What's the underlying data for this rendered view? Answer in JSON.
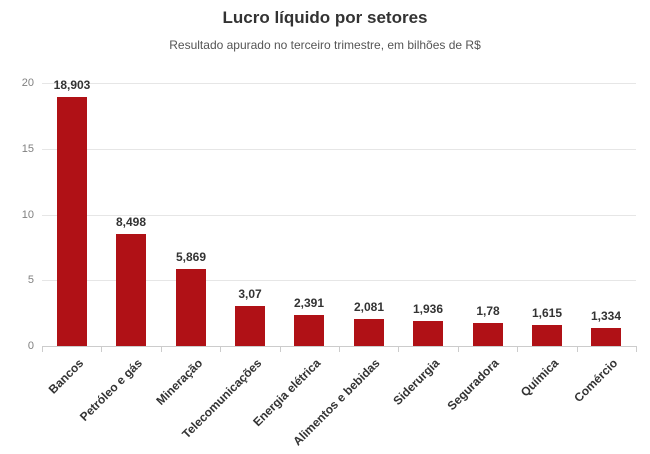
{
  "header": {
    "title": "Lucro líquido por setores",
    "subtitle": "Resultado apurado no terceiro trimestre, em bilhões de R$"
  },
  "chart_data": {
    "type": "bar",
    "title": "Lucro líquido por setores",
    "subtitle": "Resultado apurado no terceiro trimestre, em bilhões de R$",
    "categories": [
      "Bancos",
      "Petróleo e gás",
      "Mineração",
      "Telecomunicações",
      "Energia elétrica",
      "Alimentos e bebidas",
      "Siderurgia",
      "Seguradora",
      "Química",
      "Comércio"
    ],
    "values": [
      18.903,
      8.498,
      5.869,
      3.07,
      2.391,
      2.081,
      1.936,
      1.78,
      1.615,
      1.334
    ],
    "value_labels": [
      "18,903",
      "8,498",
      "5,869",
      "3,07",
      "2,391",
      "2,081",
      "1,936",
      "1,78",
      "1,615",
      "1,334"
    ],
    "xlabel": "",
    "ylabel": "",
    "ylim": [
      0,
      20
    ],
    "y_ticks": [
      0,
      5,
      10,
      15,
      20
    ],
    "y_tick_labels": [
      "0",
      "5",
      "10",
      "15",
      "20"
    ],
    "grid": true,
    "legend": "none",
    "colors": {
      "bar": "#b01116",
      "gridline": "#e6e6e6",
      "axis": "#cccccc",
      "title": "#333333",
      "subtitle": "#555555",
      "y_tick_label": "#808080",
      "data_label": "#333333",
      "x_label": "#333333",
      "background": "#ffffff"
    }
  }
}
